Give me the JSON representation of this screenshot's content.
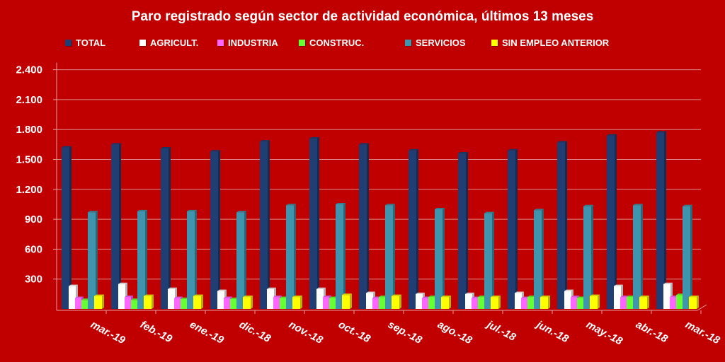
{
  "chart_data": {
    "type": "bar",
    "title": "Paro registrado según sector de actividad económica, últimos 13 meses",
    "xlabel": "",
    "ylabel": "",
    "ylim": [
      0,
      2400
    ],
    "yticks": [
      300,
      600,
      900,
      1200,
      1500,
      1800,
      2100,
      2400
    ],
    "ytick_labels": [
      "300",
      "600",
      "900",
      "1.200",
      "1.500",
      "1.800",
      "2.100",
      "2.400"
    ],
    "grid": true,
    "legend_position": "top",
    "categories": [
      "mar.-19",
      "feb.-19",
      "ene.-19",
      "dic.-18",
      "nov.-18",
      "oct.-18",
      "sep.-18",
      "ago.-18",
      "jul.-18",
      "jun.-18",
      "may.-18",
      "abr.-18",
      "mar.-18"
    ],
    "series": [
      {
        "name": "TOTAL",
        "color": "#1f3f74",
        "values": [
          1620,
          1650,
          1610,
          1580,
          1680,
          1710,
          1650,
          1590,
          1560,
          1590,
          1670,
          1740,
          1770
        ]
      },
      {
        "name": "AGRICULT.",
        "color": "#ffffff",
        "values": [
          230,
          250,
          200,
          180,
          200,
          200,
          160,
          150,
          150,
          160,
          180,
          230,
          250
        ]
      },
      {
        "name": "INDUSTRIA",
        "color": "#ff66ff",
        "values": [
          110,
          120,
          110,
          110,
          120,
          120,
          110,
          110,
          110,
          110,
          120,
          120,
          120
        ]
      },
      {
        "name": "CONSTRUC.",
        "color": "#66ff33",
        "values": [
          90,
          90,
          100,
          100,
          110,
          110,
          120,
          120,
          120,
          120,
          110,
          120,
          140
        ]
      },
      {
        "name": "SERVICIOS",
        "color": "#3e95ad",
        "values": [
          970,
          980,
          980,
          970,
          1040,
          1050,
          1040,
          1000,
          960,
          990,
          1030,
          1040,
          1030
        ]
      },
      {
        "name": "SIN EMPLEO ANTERIOR",
        "color": "#ffff00",
        "values": [
          130,
          130,
          130,
          120,
          120,
          140,
          130,
          120,
          120,
          120,
          130,
          120,
          120
        ]
      }
    ]
  }
}
